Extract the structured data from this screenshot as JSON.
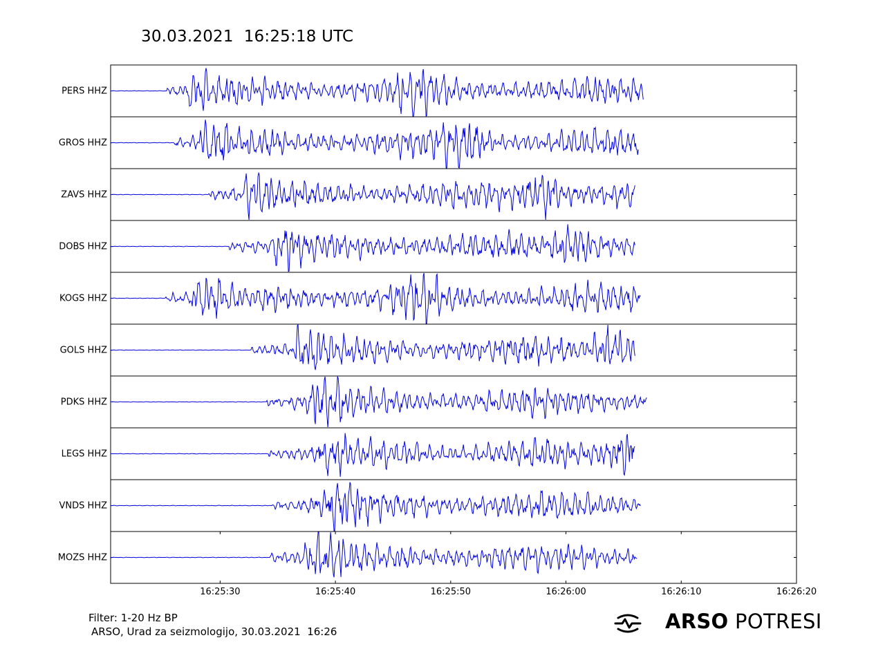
{
  "title": "30.03.2021  16:25:18 UTC",
  "footer": {
    "filter": "Filter: 1-20 Hz BP",
    "credit": "ARSO, Urad za seizmologijo, 30.03.2021  16:26"
  },
  "logo": {
    "bold": "ARSO",
    "light": "POTRESI",
    "icon": "seismic-wave-logo-icon"
  },
  "colors": {
    "trace": "#0000e0",
    "frame": "#000000"
  },
  "chart_data": {
    "type": "line",
    "title": "30.03.2021  16:25:18 UTC",
    "xlabel": "",
    "ylabel": "",
    "grid": false,
    "x_ticks": [
      "16:25:30",
      "16:25:40",
      "16:25:50",
      "16:26:00",
      "16:26:10",
      "16:26:20"
    ],
    "x_range": [
      "16:25:20.5",
      "16:26:20"
    ],
    "series": [
      {
        "name": "PERS HHZ",
        "p_arrival": "16:25:25.3",
        "s_arrival": "16:25:27.2",
        "end": "16:26:06.7",
        "peak": 1.0,
        "burst": "16:25:47.0",
        "seed": 11
      },
      {
        "name": "GROS HHZ",
        "p_arrival": "16:25:26.0",
        "s_arrival": "16:25:28.2",
        "end": "16:26:06.3",
        "peak": 1.0,
        "burst": "16:25:51.0",
        "seed": 23
      },
      {
        "name": "ZAVS HHZ",
        "p_arrival": "16:25:29.0",
        "s_arrival": "16:25:32.0",
        "end": "16:26:06.0",
        "peak": 1.0,
        "burst": "16:25:58.0",
        "seed": 37
      },
      {
        "name": "DOBS HHZ",
        "p_arrival": "16:25:30.8",
        "s_arrival": "16:25:34.5",
        "end": "16:26:06.0",
        "peak": 1.0,
        "burst": "16:26:01.0",
        "seed": 41
      },
      {
        "name": "KOGS HHZ",
        "p_arrival": "16:25:25.2",
        "s_arrival": "16:25:27.5",
        "end": "16:26:06.5",
        "peak": 1.0,
        "burst": "16:25:47.5",
        "seed": 53
      },
      {
        "name": "GOLS HHZ",
        "p_arrival": "16:25:32.7",
        "s_arrival": "16:25:36.5",
        "end": "16:26:06.0",
        "peak": 1.0,
        "burst": "16:26:04.0",
        "seed": 67
      },
      {
        "name": "PDKS HHZ",
        "p_arrival": "16:25:34.0",
        "s_arrival": "16:25:38.0",
        "end": "16:26:07.0",
        "peak": 1.0,
        "burst": "16:25:39.0",
        "seed": 71
      },
      {
        "name": "LEGS HHZ",
        "p_arrival": "16:25:34.2",
        "s_arrival": "16:25:38.5",
        "end": "16:26:06.0",
        "peak": 1.0,
        "burst": "16:26:05.5",
        "seed": 83
      },
      {
        "name": "VNDS HHZ",
        "p_arrival": "16:25:34.5",
        "s_arrival": "16:25:39.5",
        "end": "16:26:06.5",
        "peak": 1.0,
        "burst": "16:25:40.5",
        "seed": 97
      },
      {
        "name": "MOZS HHZ",
        "p_arrival": "16:25:34.3",
        "s_arrival": "16:25:38.2",
        "end": "16:26:06.2",
        "peak": 1.0,
        "burst": "16:25:38.8",
        "seed": 101
      }
    ]
  }
}
